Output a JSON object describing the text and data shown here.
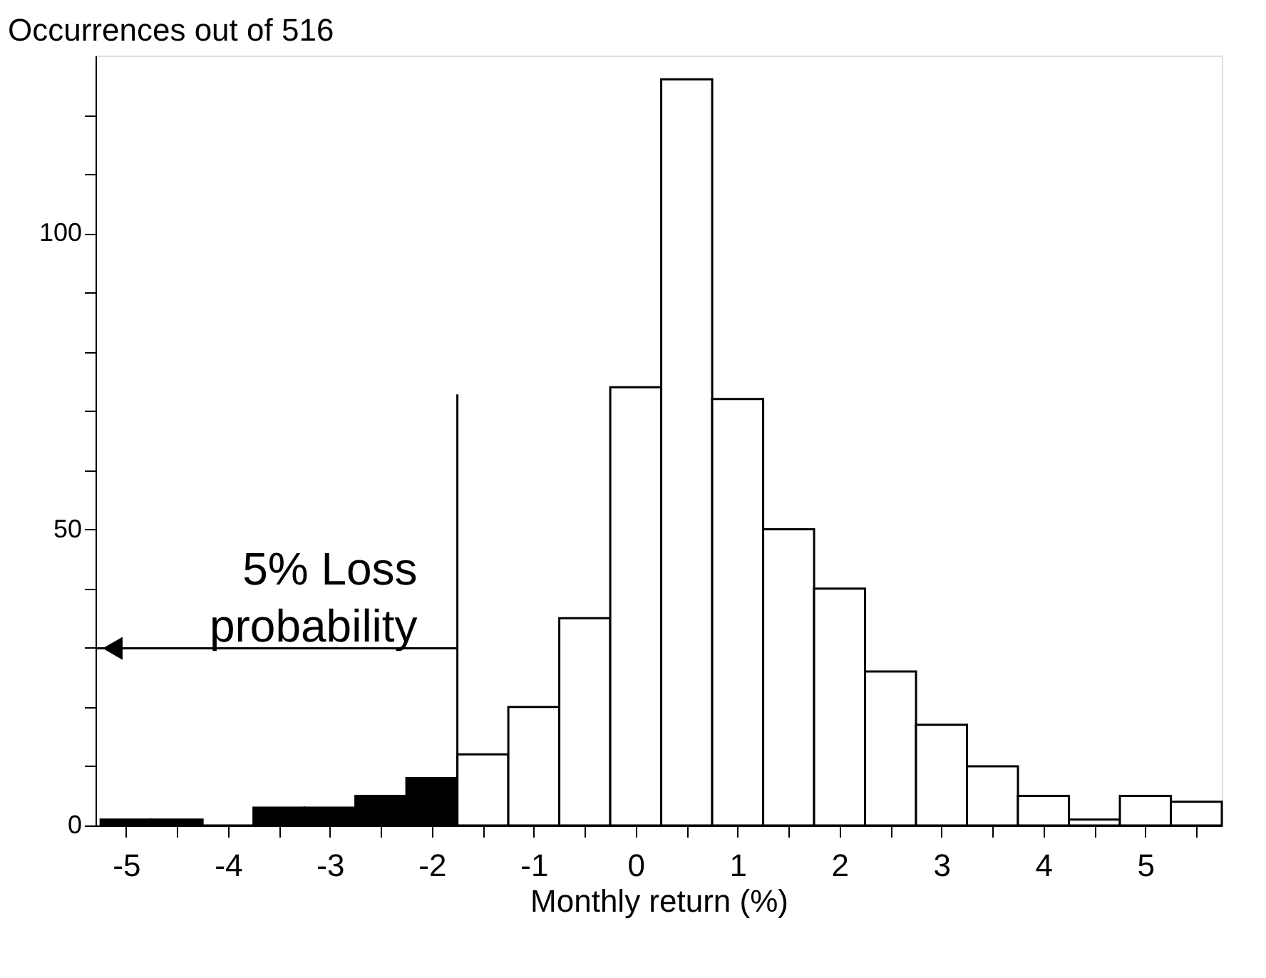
{
  "chart_data": {
    "type": "histogram",
    "ylabel": "Occurrences out of 516",
    "xlabel": "Monthly return (%)",
    "bins": [
      -5.25,
      -4.75,
      -4.25,
      -3.75,
      -3.25,
      -2.75,
      -2.25,
      -1.75,
      -1.25,
      -0.75,
      -0.25,
      0.25,
      0.75,
      1.25,
      1.75,
      2.25,
      2.75,
      3.25,
      3.75,
      4.25,
      4.75,
      5.25,
      5.75
    ],
    "values": [
      1,
      1,
      0,
      3,
      3,
      5,
      8,
      12,
      20,
      35,
      74,
      126,
      72,
      50,
      40,
      26,
      17,
      10,
      5,
      1,
      5,
      4
    ],
    "colors": [
      "#000000",
      "#000000",
      "#000000",
      "#000000",
      "#000000",
      "#000000",
      "#000000",
      "#ffffff",
      "#ffffff",
      "#ffffff",
      "#ffffff",
      "#ffffff",
      "#ffffff",
      "#ffffff",
      "#ffffff",
      "#ffffff",
      "#ffffff",
      "#ffffff",
      "#ffffff",
      "#ffffff",
      "#ffffff",
      "#ffffff"
    ],
    "xlim": [
      -5.3,
      5.75
    ],
    "xticks": [
      -5,
      {
        "value": -4.5,
        "label": null
      },
      -4,
      {
        "value": -3.5,
        "label": null
      },
      -3,
      {
        "value": -2.5,
        "label": null
      },
      -2,
      {
        "value": -1.5,
        "label": null
      },
      -1,
      {
        "value": -0.5,
        "label": null
      },
      0,
      {
        "value": 0.5,
        "label": null
      },
      1,
      {
        "value": 1.5,
        "label": null
      },
      2,
      {
        "value": 2.5,
        "label": null
      },
      3,
      {
        "value": 3.5,
        "label": null
      },
      4,
      {
        "value": 4.5,
        "label": null
      },
      5,
      {
        "value": 5.5,
        "label": null
      }
    ],
    "ylim": [
      0,
      130
    ],
    "yticks": [
      0,
      {
        "value": 10,
        "label": null
      },
      {
        "value": 20,
        "label": null
      },
      {
        "value": 30,
        "label": null
      },
      {
        "value": 40,
        "label": null
      },
      50,
      {
        "value": 60,
        "label": null
      },
      {
        "value": 70,
        "label": null
      },
      {
        "value": 80,
        "label": null
      },
      {
        "value": 90,
        "label": null
      },
      100,
      {
        "value": 110,
        "label": null
      },
      {
        "value": 120,
        "label": null
      }
    ],
    "grid": false,
    "ref_lines": [
      {
        "axis": "x",
        "value": -1.75,
        "label": "5% Loss\nprobability",
        "color": "#000000",
        "line_style": "solid"
      }
    ]
  }
}
